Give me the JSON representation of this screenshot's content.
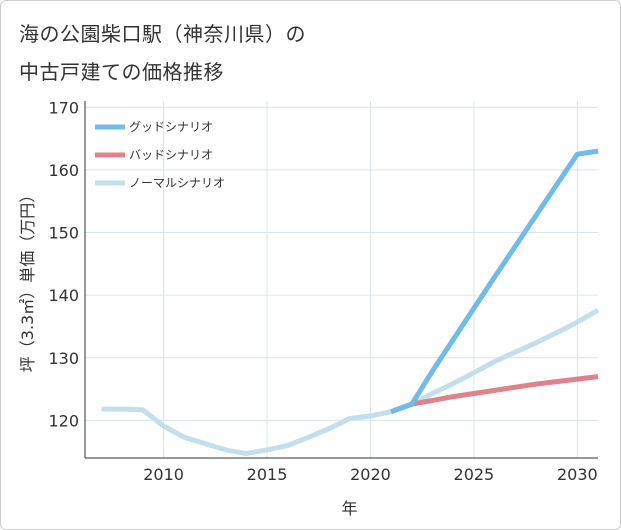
{
  "title_line1": "海の公園柴口駅（神奈川県）の",
  "title_line2": "中古戸建ての価格推移",
  "chart_data": {
    "type": "line",
    "xlabel": "年",
    "ylabel": "坪（3.3㎡）単価（万円）",
    "xlim": [
      2006.2,
      2031
    ],
    "ylim": [
      114,
      171
    ],
    "x_ticks": [
      2010,
      2015,
      2020,
      2025,
      2030
    ],
    "y_ticks": [
      120,
      130,
      140,
      150,
      160,
      170
    ],
    "grid": true,
    "legend_position": "top-left",
    "series": [
      {
        "name": "ノーマルシナリオ",
        "color": "#c3dfee",
        "x": [
          2007,
          2008,
          2009,
          2010,
          2011,
          2012,
          2013,
          2014,
          2015,
          2016,
          2017,
          2018,
          2019,
          2020,
          2021,
          2022,
          2023,
          2024,
          2025,
          2026,
          2027,
          2028,
          2029,
          2030,
          2031
        ],
        "values": [
          121.8,
          121.8,
          121.7,
          119.1,
          117.3,
          116.3,
          115.3,
          114.7,
          115.3,
          116.0,
          117.3,
          118.7,
          120.3,
          120.7,
          121.4,
          122.6,
          124.3,
          125.9,
          127.6,
          129.4,
          130.9,
          132.4,
          134.0,
          135.7,
          137.6
        ]
      },
      {
        "name": "バッドシナリオ",
        "color": "#e0828a",
        "x": [
          2021,
          2022,
          2023,
          2024,
          2025,
          2026,
          2027,
          2028,
          2029,
          2030,
          2031
        ],
        "values": [
          121.4,
          122.6,
          123.2,
          123.8,
          124.3,
          124.8,
          125.3,
          125.8,
          126.2,
          126.6,
          127.0
        ]
      },
      {
        "name": "グッドシナリオ",
        "color": "#6fbbec",
        "x": [
          2021,
          2022,
          2023,
          2024,
          2025,
          2026,
          2027,
          2028,
          2029,
          2030,
          2031
        ],
        "values": [
          121.4,
          122.6,
          127.9,
          132.9,
          137.9,
          142.9,
          147.8,
          152.7,
          157.6,
          162.5,
          163.0
        ]
      }
    ],
    "legend": [
      "グッドシナリオ",
      "バッドシナリオ",
      "ノーマルシナリオ"
    ]
  }
}
